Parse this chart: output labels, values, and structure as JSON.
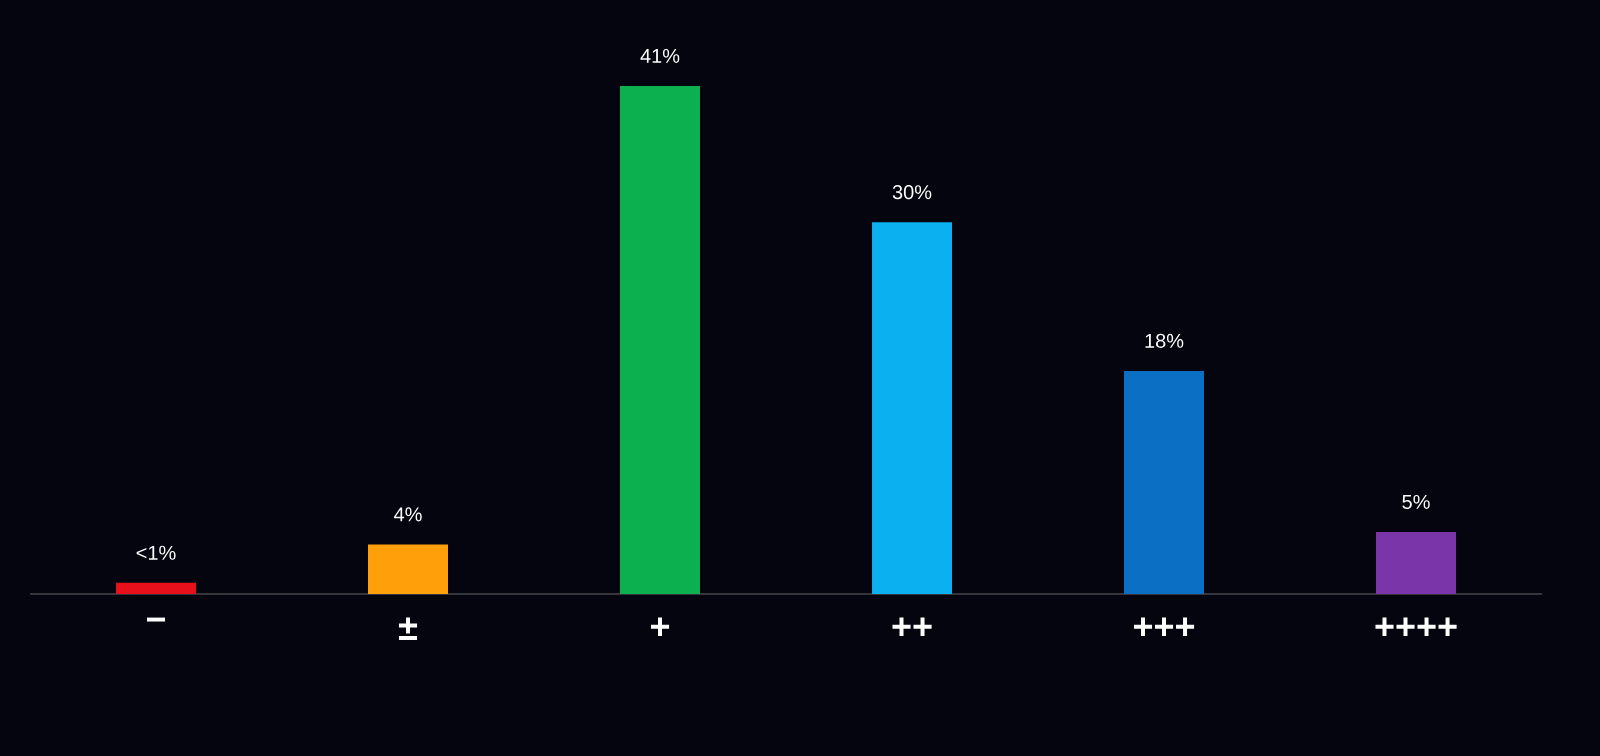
{
  "chart_data": {
    "type": "bar",
    "categories": [
      "−",
      "±",
      "+",
      "++",
      "+++",
      "++++"
    ],
    "values": [
      0.9,
      4,
      41,
      30,
      18,
      5
    ],
    "colors": [
      "#e8101a",
      "#ff9f0a",
      "#0cb04f",
      "#0ab0f0",
      "#0b6fc4",
      "#7a35a8"
    ],
    "value_labels": [
      "<1%",
      "4%",
      "41%",
      "30%",
      "18%",
      "5%"
    ]
  }
}
